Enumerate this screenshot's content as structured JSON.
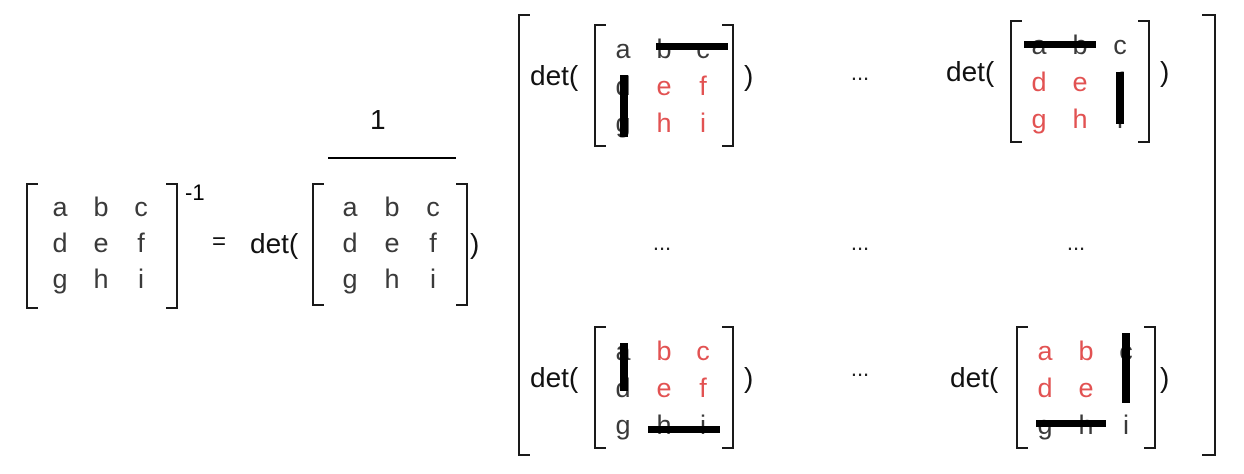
{
  "matrix": {
    "entries": [
      "a",
      "b",
      "c",
      "d",
      "e",
      "f",
      "g",
      "h",
      "i"
    ],
    "inverse_exponent": "-1"
  },
  "equals": "=",
  "det_label": "det(",
  "close_paren": ")",
  "fraction_numerator": "1",
  "ellipsis": "...",
  "colors": {
    "ink": "#000000",
    "entry_text": "#3a3a3a",
    "highlight": "#e25252",
    "strike_bar": "#000000"
  }
}
